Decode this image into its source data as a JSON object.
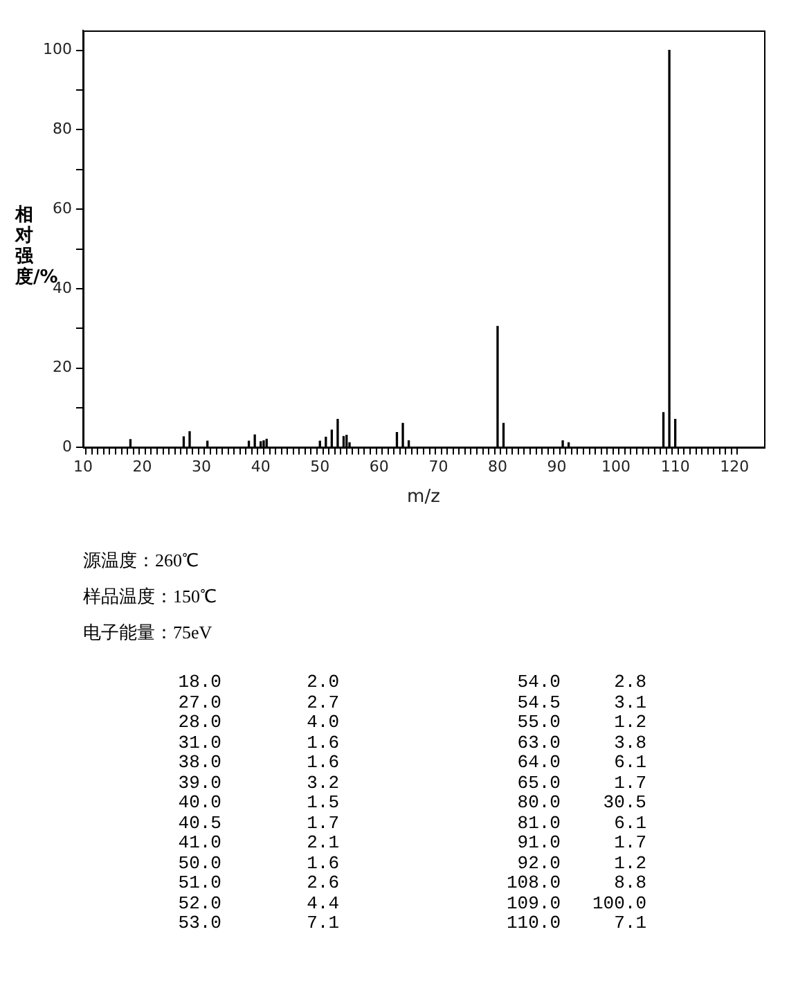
{
  "chart_data": [
    {
      "type": "bar",
      "ylabel": "相对强度/%",
      "xlabel": "m/z",
      "x": [
        18.0,
        27.0,
        28.0,
        31.0,
        38.0,
        39.0,
        40.0,
        40.5,
        41.0,
        50.0,
        51.0,
        52.0,
        53.0,
        54.0,
        54.5,
        55.0,
        63.0,
        64.0,
        65.0,
        80.0,
        81.0,
        91.0,
        92.0,
        108.0,
        109.0,
        110.0
      ],
      "values": [
        2.0,
        2.7,
        4.0,
        1.6,
        1.6,
        3.2,
        1.5,
        1.7,
        2.1,
        1.6,
        2.6,
        4.4,
        7.1,
        2.8,
        3.1,
        1.2,
        3.8,
        6.1,
        1.7,
        30.5,
        6.1,
        1.7,
        1.2,
        8.8,
        100.0,
        7.1
      ],
      "color": "#000000",
      "xlim": [
        10,
        125
      ],
      "xticks": [
        10,
        {
          "value": 11,
          "label": null
        },
        {
          "value": 12,
          "label": null
        },
        {
          "value": 13,
          "label": null
        },
        {
          "value": 14,
          "label": null
        },
        {
          "value": 15,
          "label": null
        },
        {
          "value": 16,
          "label": null
        },
        {
          "value": 17,
          "label": null
        },
        {
          "value": 18,
          "label": null
        },
        {
          "value": 19,
          "label": null
        },
        20,
        {
          "value": 21,
          "label": null
        },
        {
          "value": 22,
          "label": null
        },
        {
          "value": 23,
          "label": null
        },
        {
          "value": 24,
          "label": null
        },
        {
          "value": 25,
          "label": null
        },
        {
          "value": 26,
          "label": null
        },
        {
          "value": 27,
          "label": null
        },
        {
          "value": 28,
          "label": null
        },
        {
          "value": 29,
          "label": null
        },
        30,
        {
          "value": 31,
          "label": null
        },
        {
          "value": 32,
          "label": null
        },
        {
          "value": 33,
          "label": null
        },
        {
          "value": 34,
          "label": null
        },
        {
          "value": 35,
          "label": null
        },
        {
          "value": 36,
          "label": null
        },
        {
          "value": 37,
          "label": null
        },
        {
          "value": 38,
          "label": null
        },
        {
          "value": 39,
          "label": null
        },
        40,
        {
          "value": 41,
          "label": null
        },
        {
          "value": 42,
          "label": null
        },
        {
          "value": 43,
          "label": null
        },
        {
          "value": 44,
          "label": null
        },
        {
          "value": 45,
          "label": null
        },
        {
          "value": 46,
          "label": null
        },
        {
          "value": 47,
          "label": null
        },
        {
          "value": 48,
          "label": null
        },
        {
          "value": 49,
          "label": null
        },
        50,
        {
          "value": 51,
          "label": null
        },
        {
          "value": 52,
          "label": null
        },
        {
          "value": 53,
          "label": null
        },
        {
          "value": 54,
          "label": null
        },
        {
          "value": 55,
          "label": null
        },
        {
          "value": 56,
          "label": null
        },
        {
          "value": 57,
          "label": null
        },
        {
          "value": 58,
          "label": null
        },
        {
          "value": 59,
          "label": null
        },
        60,
        {
          "value": 61,
          "label": null
        },
        {
          "value": 62,
          "label": null
        },
        {
          "value": 63,
          "label": null
        },
        {
          "value": 64,
          "label": null
        },
        {
          "value": 65,
          "label": null
        },
        {
          "value": 66,
          "label": null
        },
        {
          "value": 67,
          "label": null
        },
        {
          "value": 68,
          "label": null
        },
        {
          "value": 69,
          "label": null
        },
        70,
        {
          "value": 71,
          "label": null
        },
        {
          "value": 72,
          "label": null
        },
        {
          "value": 73,
          "label": null
        },
        {
          "value": 74,
          "label": null
        },
        {
          "value": 75,
          "label": null
        },
        {
          "value": 76,
          "label": null
        },
        {
          "value": 77,
          "label": null
        },
        {
          "value": 78,
          "label": null
        },
        {
          "value": 79,
          "label": null
        },
        80,
        {
          "value": 81,
          "label": null
        },
        {
          "value": 82,
          "label": null
        },
        {
          "value": 83,
          "label": null
        },
        {
          "value": 84,
          "label": null
        },
        {
          "value": 85,
          "label": null
        },
        {
          "value": 86,
          "label": null
        },
        {
          "value": 87,
          "label": null
        },
        {
          "value": 88,
          "label": null
        },
        {
          "value": 89,
          "label": null
        },
        90,
        {
          "value": 91,
          "label": null
        },
        {
          "value": 92,
          "label": null
        },
        {
          "value": 93,
          "label": null
        },
        {
          "value": 94,
          "label": null
        },
        {
          "value": 95,
          "label": null
        },
        {
          "value": 96,
          "label": null
        },
        {
          "value": 97,
          "label": null
        },
        {
          "value": 98,
          "label": null
        },
        {
          "value": 99,
          "label": null
        },
        100,
        {
          "value": 101,
          "label": null
        },
        {
          "value": 102,
          "label": null
        },
        {
          "value": 103,
          "label": null
        },
        {
          "value": 104,
          "label": null
        },
        {
          "value": 105,
          "label": null
        },
        {
          "value": 106,
          "label": null
        },
        {
          "value": 107,
          "label": null
        },
        {
          "value": 108,
          "label": null
        },
        {
          "value": 109,
          "label": null
        },
        110,
        {
          "value": 111,
          "label": null
        },
        {
          "value": 112,
          "label": null
        },
        {
          "value": 113,
          "label": null
        },
        {
          "value": 114,
          "label": null
        },
        {
          "value": 115,
          "label": null
        },
        {
          "value": 116,
          "label": null
        },
        {
          "value": 117,
          "label": null
        },
        {
          "value": 118,
          "label": null
        },
        {
          "value": 119,
          "label": null
        },
        120
      ],
      "ylim": [
        0,
        105
      ],
      "yticks": [
        0,
        {
          "value": 10,
          "label": null
        },
        20,
        {
          "value": 30,
          "label": null
        },
        40,
        {
          "value": 50,
          "label": null
        },
        60,
        {
          "value": 70,
          "label": null
        },
        80,
        {
          "value": 90,
          "label": null
        },
        100
      ],
      "grid": false,
      "annotations": [
        "源温度：260℃",
        "样品温度：150℃",
        "电子能量：75eV"
      ]
    },
    {
      "type": "other",
      "annotations": [
        "18.0",
        "2.0",
        "54.0",
        "2.8",
        "27.0",
        "2.7",
        "54.5",
        "3.1",
        "28.0",
        "4.0",
        "55.0",
        "1.2",
        "31.0",
        "1.6",
        "63.0",
        "3.8",
        "38.0",
        "1.6",
        "64.0",
        "6.1",
        "39.0",
        "3.2",
        "65.0",
        "1.7",
        "40.0",
        "1.5",
        "80.0",
        "30.5",
        "40.5",
        "1.7",
        "81.0",
        "6.1",
        "41.0",
        "2.1",
        "91.0",
        "1.7",
        "50.0",
        "1.6",
        "92.0",
        "1.2",
        "51.0",
        "2.6",
        "108.0",
        "8.8",
        "52.0",
        "4.4",
        "109.0",
        "100.0",
        "53.0",
        "7.1",
        "110.0",
        "7.1"
      ]
    }
  ]
}
